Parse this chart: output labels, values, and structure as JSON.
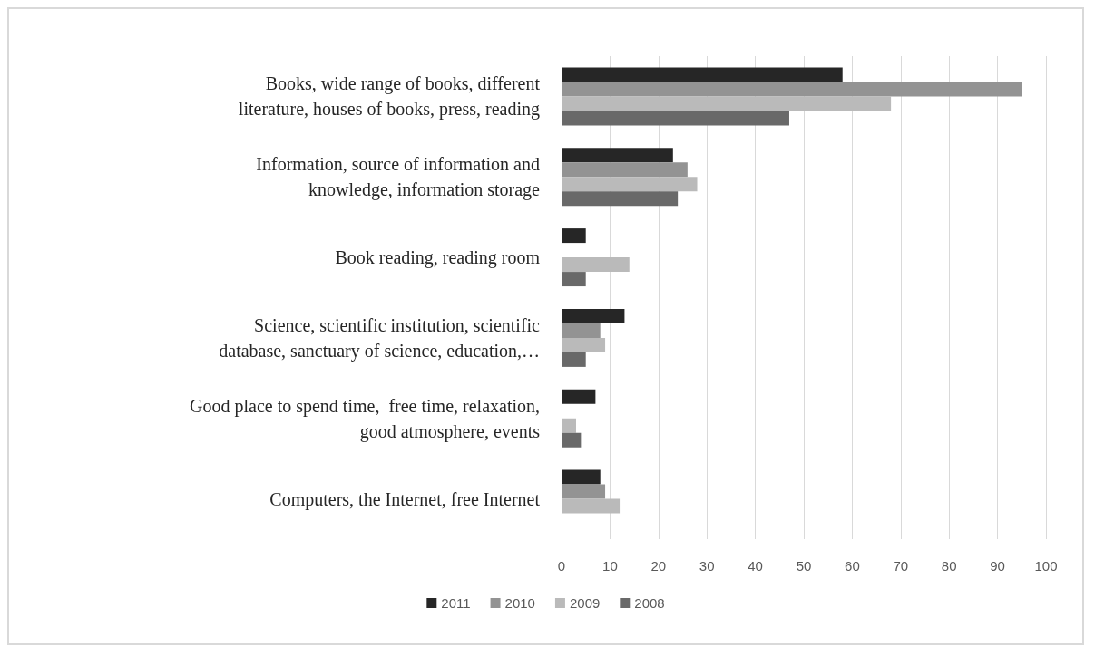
{
  "chart_data": {
    "type": "bar",
    "orientation": "horizontal",
    "categories": [
      "Books, wide range of books, different\nliterature, houses of books, press, reading",
      "Information, source of information and\nknowledge, information storage",
      "Book reading, reading room",
      "Science, scientific institution, scientific\ndatabase, sanctuary of science, education,…",
      "Good place to spend time,  free time, relaxation,\ngood atmosphere, events",
      "Computers, the Internet, free Internet"
    ],
    "series": [
      {
        "name": "2011",
        "color": "#262626",
        "values": [
          58,
          23,
          5,
          13,
          7,
          8
        ]
      },
      {
        "name": "2010",
        "color": "#939393",
        "values": [
          95,
          26,
          null,
          8,
          null,
          9
        ]
      },
      {
        "name": "2009",
        "color": "#bababa",
        "values": [
          68,
          28,
          14,
          9,
          3,
          12
        ]
      },
      {
        "name": "2008",
        "color": "#696969",
        "values": [
          47,
          24,
          5,
          5,
          4,
          null
        ]
      }
    ],
    "xlim": [
      0,
      100
    ],
    "xticks": [
      0,
      10,
      20,
      30,
      40,
      50,
      60,
      70,
      80,
      90,
      100
    ],
    "grid": "x",
    "legend": "bottom"
  }
}
